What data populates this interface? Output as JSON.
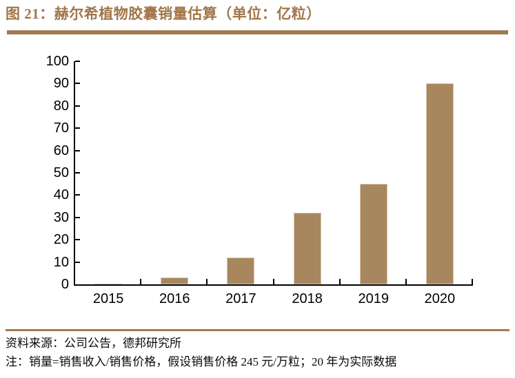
{
  "figure": {
    "title": "图 21：赫尔希植物胶囊销量估算（单位：亿粒）",
    "source_line": "资料来源：公司公告，德邦研究所",
    "note_line": "注：销量=销售收入/销售价格，假设销售价格 245 元/万粒；20 年为实际数据"
  },
  "colors": {
    "accent_brown": "#a27a52",
    "bar_fill": "#a8875f",
    "bar_edge": "#d5c8b2",
    "axis": "#000000",
    "text": "#0a0a0a"
  },
  "chart_data": {
    "type": "bar",
    "title": "赫尔希植物胶囊销量估算（单位：亿粒）",
    "categories": [
      "2015",
      "2016",
      "2017",
      "2018",
      "2019",
      "2020"
    ],
    "values": [
      0.2,
      3,
      12,
      32,
      45,
      90
    ],
    "xlabel": "",
    "ylabel": "",
    "ylim": [
      0,
      100
    ],
    "ytick_step": 10,
    "yticks": [
      0,
      10,
      20,
      30,
      40,
      50,
      60,
      70,
      80,
      90,
      100
    ],
    "grid": false,
    "legend": "none",
    "bar_color": "#a8875f"
  }
}
